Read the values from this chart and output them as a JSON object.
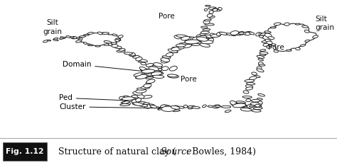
{
  "fig_label": "Fig. 1.12",
  "caption_text": "Structure of natural clay (",
  "caption_italic": "Source",
  "caption_end": ": Bowles, 1984)",
  "fig_label_bg": "#111111",
  "fig_label_color": "#ffffff",
  "border_color": "#aaaaaa",
  "background": "#ffffff",
  "figsize": [
    4.74,
    2.33
  ],
  "dpi": 100,
  "caption_fontsize": 9.0,
  "annotation_fontsize": 7.5,
  "ec": "#1a1a1a",
  "lw": 0.65
}
